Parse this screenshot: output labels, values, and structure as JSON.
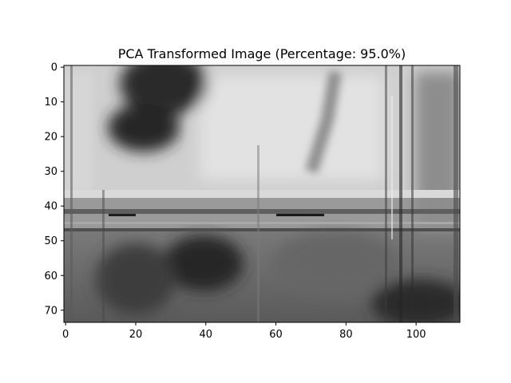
{
  "chart_data": {
    "type": "heatmap",
    "title": "PCA Transformed Image (Percentage: 95.0%)",
    "xlabel": "",
    "ylabel": "",
    "colormap": "gray",
    "image_size": {
      "columns": 113,
      "rows": 74
    },
    "xlim": [
      -0.5,
      112.5
    ],
    "ylim": [
      73.5,
      -0.5
    ],
    "x_ticks": [
      0,
      20,
      40,
      60,
      80,
      100
    ],
    "y_ticks": [
      0,
      10,
      20,
      30,
      40,
      50,
      60,
      70
    ],
    "grid": false,
    "legend": "none"
  }
}
